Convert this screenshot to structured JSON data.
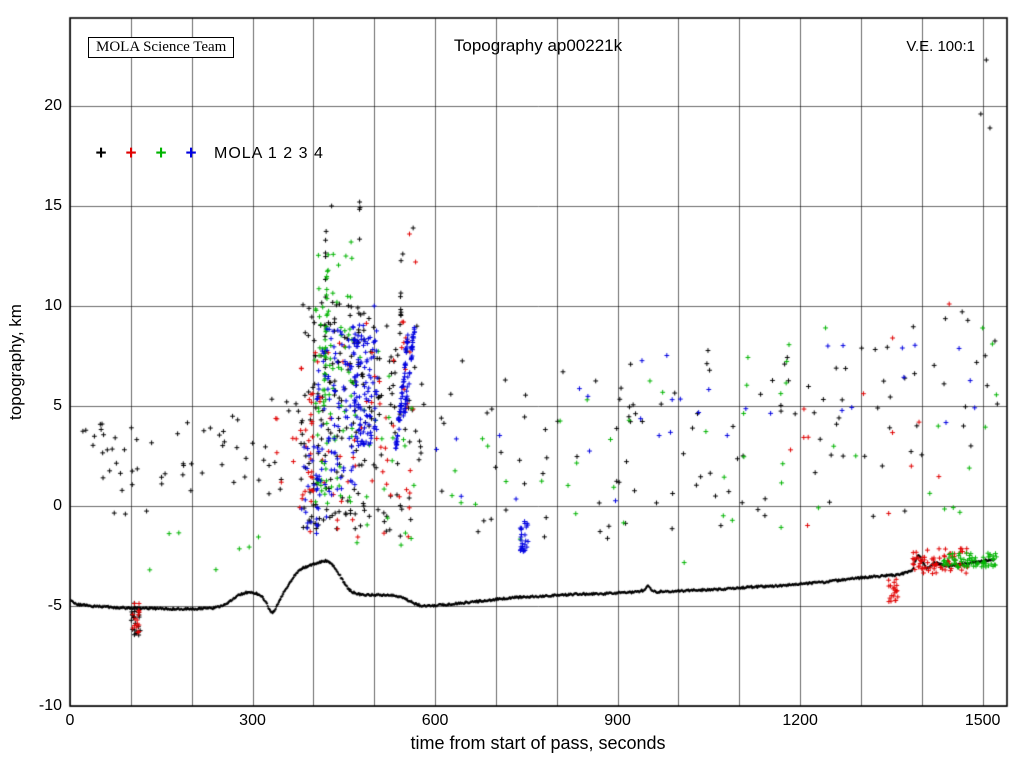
{
  "header": {
    "badge": "MOLA Science Team",
    "title": "Topography ap00221k",
    "ve_label": "V.E. 100:1"
  },
  "legend": {
    "label": "MOLA 1 2 3 4",
    "marker_glyph": "+",
    "markers": [
      {
        "name": "MOLA 1",
        "color": "#000000"
      },
      {
        "name": "MOLA 2",
        "color": "#e00000"
      },
      {
        "name": "MOLA 3",
        "color": "#00b400"
      },
      {
        "name": "MOLA 4",
        "color": "#0000e0"
      }
    ]
  },
  "chart_data": {
    "type": "scatter",
    "title": "Topography ap00221k",
    "xlabel": "time from start of pass, seconds",
    "ylabel": "topography, km",
    "xlim": [
      0,
      1540
    ],
    "ylim": [
      -10,
      24.4
    ],
    "x_tick_labels": [
      0,
      300,
      600,
      900,
      1200,
      1500
    ],
    "x_grid_step": 100,
    "y_tick_labels": [
      -10,
      -5,
      0,
      5,
      10,
      15,
      20
    ],
    "y_grid_step": 5,
    "grid": true,
    "legend_position": "upper-left-inside",
    "marker": "+",
    "colors": {
      "black": "#000000",
      "red": "#e00000",
      "green": "#00b400",
      "blue": "#0000e0"
    },
    "series": [
      {
        "name": "MOLA 1",
        "color_key": "black"
      },
      {
        "name": "MOLA 2",
        "color_key": "red"
      },
      {
        "name": "MOLA 3",
        "color_key": "green"
      },
      {
        "name": "MOLA 4",
        "color_key": "blue"
      }
    ],
    "ground_track": [
      [
        0,
        -4.7
      ],
      [
        10,
        -4.9
      ],
      [
        30,
        -5.0
      ],
      [
        60,
        -5.05
      ],
      [
        90,
        -5.1
      ],
      [
        120,
        -5.1
      ],
      [
        160,
        -5.15
      ],
      [
        200,
        -5.15
      ],
      [
        235,
        -5.1
      ],
      [
        255,
        -4.95
      ],
      [
        265,
        -4.7
      ],
      [
        275,
        -4.5
      ],
      [
        285,
        -4.35
      ],
      [
        295,
        -4.3
      ],
      [
        305,
        -4.35
      ],
      [
        315,
        -4.5
      ],
      [
        322,
        -4.8
      ],
      [
        328,
        -5.2
      ],
      [
        333,
        -5.35
      ],
      [
        338,
        -5.1
      ],
      [
        343,
        -4.8
      ],
      [
        350,
        -4.4
      ],
      [
        358,
        -4.0
      ],
      [
        366,
        -3.6
      ],
      [
        374,
        -3.3
      ],
      [
        382,
        -3.1
      ],
      [
        392,
        -3.0
      ],
      [
        402,
        -2.9
      ],
      [
        412,
        -2.8
      ],
      [
        420,
        -2.75
      ],
      [
        428,
        -2.85
      ],
      [
        436,
        -3.1
      ],
      [
        444,
        -3.5
      ],
      [
        452,
        -3.9
      ],
      [
        458,
        -4.15
      ],
      [
        464,
        -4.3
      ],
      [
        472,
        -4.4
      ],
      [
        485,
        -4.45
      ],
      [
        505,
        -4.45
      ],
      [
        525,
        -4.45
      ],
      [
        545,
        -4.55
      ],
      [
        558,
        -4.75
      ],
      [
        568,
        -4.9
      ],
      [
        580,
        -5.0
      ],
      [
        595,
        -5.0
      ],
      [
        610,
        -4.95
      ],
      [
        630,
        -4.9
      ],
      [
        660,
        -4.8
      ],
      [
        690,
        -4.7
      ],
      [
        720,
        -4.6
      ],
      [
        750,
        -4.55
      ],
      [
        780,
        -4.5
      ],
      [
        810,
        -4.45
      ],
      [
        840,
        -4.4
      ],
      [
        870,
        -4.4
      ],
      [
        900,
        -4.35
      ],
      [
        930,
        -4.3
      ],
      [
        945,
        -4.2
      ],
      [
        950,
        -3.95
      ],
      [
        955,
        -4.2
      ],
      [
        965,
        -4.3
      ],
      [
        1000,
        -4.25
      ],
      [
        1040,
        -4.2
      ],
      [
        1080,
        -4.15
      ],
      [
        1120,
        -4.05
      ],
      [
        1160,
        -4.0
      ],
      [
        1200,
        -3.9
      ],
      [
        1240,
        -3.8
      ],
      [
        1280,
        -3.65
      ],
      [
        1310,
        -3.55
      ],
      [
        1335,
        -3.5
      ],
      [
        1355,
        -3.45
      ],
      [
        1375,
        -3.35
      ],
      [
        1385,
        -3.2
      ],
      [
        1390,
        -2.7
      ],
      [
        1394,
        -2.45
      ],
      [
        1398,
        -2.55
      ],
      [
        1402,
        -2.85
      ],
      [
        1408,
        -3.1
      ],
      [
        1414,
        -3.0
      ],
      [
        1420,
        -2.85
      ],
      [
        1430,
        -2.9
      ],
      [
        1445,
        -3.0
      ],
      [
        1460,
        -2.95
      ],
      [
        1475,
        -2.85
      ],
      [
        1490,
        -2.8
      ],
      [
        1505,
        -2.72
      ],
      [
        1520,
        -2.7
      ]
    ],
    "noise_clusters": [
      {
        "color": "black",
        "t": [
          100,
          116
        ],
        "z": [
          -6.6,
          -4.8
        ],
        "n": 24
      },
      {
        "color": "red",
        "t": [
          103,
          114
        ],
        "z": [
          -6.4,
          -4.8
        ],
        "n": 16
      },
      {
        "color": "black",
        "t": [
          18,
          260
        ],
        "z": [
          1.4,
          4.2
        ],
        "n": 38
      },
      {
        "color": "black",
        "t": [
          60,
          330
        ],
        "z": [
          -0.8,
          1.2
        ],
        "n": 9
      },
      {
        "color": "green",
        "t": [
          110,
          330
        ],
        "z": [
          -3.2,
          -0.8
        ],
        "n": 7
      },
      {
        "color": "black",
        "t": [
          262,
          380
        ],
        "z": [
          0.4,
          5.4
        ],
        "n": 20
      },
      {
        "color": "red",
        "t": [
          330,
          400
        ],
        "z": [
          -1.2,
          4.6
        ],
        "n": 10
      },
      {
        "color": "black",
        "t": [
          380,
          500
        ],
        "z": [
          -1.2,
          10.2
        ],
        "n": 150
      },
      {
        "color": "black",
        "t": [
          500,
          580
        ],
        "z": [
          -1.6,
          9.0
        ],
        "n": 55
      },
      {
        "color": "red",
        "t": [
          380,
          570
        ],
        "z": [
          -1.6,
          9.4
        ],
        "n": 75
      },
      {
        "color": "red",
        "t": [
          392,
          399
        ],
        "z": [
          0,
          6
        ],
        "n": 15
      },
      {
        "color": "green",
        "t": [
          400,
          470
        ],
        "z": [
          0,
          12.6
        ],
        "n": 80
      },
      {
        "color": "green",
        "t": [
          470,
          570
        ],
        "z": [
          -2,
          8
        ],
        "n": 22
      },
      {
        "color": "blue",
        "t": [
          405,
          470
        ],
        "z": [
          0.5,
          9
        ],
        "n": 90
      },
      {
        "color": "blue",
        "t": [
          465,
          505
        ],
        "z": [
          3,
          9.2
        ],
        "n": 110
      },
      {
        "color": "blue",
        "t": [
          380,
          432
        ],
        "z": [
          -1.5,
          3
        ],
        "n": 28
      },
      {
        "color": "blue",
        "t": [
          740,
          753
        ],
        "z": [
          -2.3,
          -0.6
        ],
        "n": 26
      },
      {
        "color": "black",
        "t": [
          580,
          1000
        ],
        "z": [
          -2,
          7.4
        ],
        "n": 52
      },
      {
        "color": "black",
        "t": [
          1000,
          1380
        ],
        "z": [
          -1,
          8
        ],
        "n": 52
      },
      {
        "color": "black",
        "t": [
          1380,
          1526
        ],
        "z": [
          2,
          10
        ],
        "n": 18
      },
      {
        "color": "green",
        "t": [
          560,
          1050
        ],
        "z": [
          -3,
          6.5
        ],
        "n": 22
      },
      {
        "color": "green",
        "t": [
          1050,
          1526
        ],
        "z": [
          -2,
          9
        ],
        "n": 26
      },
      {
        "color": "red",
        "t": [
          1150,
          1520
        ],
        "z": [
          -1,
          6
        ],
        "n": 11
      },
      {
        "color": "blue",
        "t": [
          900,
          1520
        ],
        "z": [
          3.5,
          8.5
        ],
        "n": 22
      },
      {
        "color": "blue",
        "t": [
          560,
          900
        ],
        "z": [
          -1,
          6
        ],
        "n": 9
      },
      {
        "color": "red",
        "t": [
          1395,
          1475
        ],
        "z": [
          -3.4,
          -2.1
        ],
        "n": 60
      },
      {
        "color": "red",
        "t": [
          1385,
          1403
        ],
        "z": [
          -3.2,
          -2.3
        ],
        "n": 14
      },
      {
        "color": "green",
        "t": [
          1435,
          1523
        ],
        "z": [
          -3.05,
          -2.35
        ],
        "n": 70
      },
      {
        "color": "red",
        "t": [
          1345,
          1362
        ],
        "z": [
          -4.9,
          -3.6
        ],
        "n": 20
      }
    ],
    "streaks": [
      {
        "color": "blue",
        "from": [
          536,
          2.8
        ],
        "to": [
          556,
          8.6
        ],
        "n": 55,
        "jitter": [
          3,
          0.3
        ]
      },
      {
        "color": "blue",
        "from": [
          548,
          4.2
        ],
        "to": [
          566,
          8.9
        ],
        "n": 40,
        "jitter": [
          3,
          0.3
        ]
      },
      {
        "color": "green",
        "from": [
          418,
          5.0
        ],
        "to": [
          424,
          12.8
        ],
        "n": 28,
        "jitter": [
          2.5,
          0.35
        ]
      },
      {
        "color": "black",
        "from": [
          419,
          6.0
        ],
        "to": [
          421,
          14.9
        ],
        "n": 12,
        "jitter": [
          1.6,
          0.4
        ]
      },
      {
        "color": "black",
        "from": [
          474,
          7.0
        ],
        "to": [
          476,
          15.2
        ],
        "n": 10,
        "jitter": [
          1.6,
          0.4
        ]
      },
      {
        "color": "black",
        "from": [
          543,
          9.0
        ],
        "to": [
          545,
          12.8
        ],
        "n": 8,
        "jitter": [
          1.6,
          0.4
        ]
      }
    ],
    "outliers": [
      {
        "color": "black",
        "points": [
          [
            430,
            15.0
          ],
          [
            476,
            15.2
          ],
          [
            547,
            12.6
          ],
          [
            564,
            13.9
          ],
          [
            1497,
            19.6
          ],
          [
            1506,
            22.3
          ],
          [
            1512,
            18.9
          ]
        ]
      },
      {
        "color": "red",
        "points": [
          [
            558,
            13.6
          ],
          [
            568,
            12.2
          ],
          [
            1445,
            10.1
          ],
          [
            1352,
            8.4
          ]
        ]
      },
      {
        "color": "green",
        "points": [
          [
            462,
            13.2
          ],
          [
            1500,
            8.9
          ],
          [
            1516,
            8.1
          ]
        ]
      },
      {
        "color": "blue",
        "points": [
          [
            500,
            10.0
          ],
          [
            1368,
            7.9
          ]
        ]
      }
    ]
  }
}
